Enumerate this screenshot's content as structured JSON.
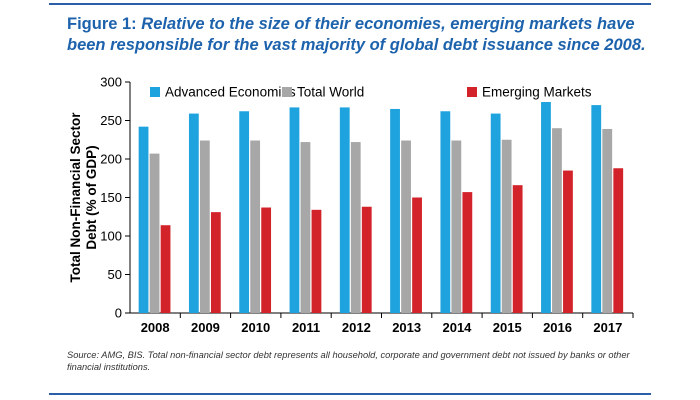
{
  "figure": {
    "label": "Figure 1:",
    "title": "Relative to the size of their economies, emerging markets have been responsible for the vast majority of global debt issuance since 2008."
  },
  "source_note": "Source: AMG, BIS. Total non-financial sector debt represents all household, corporate and government debt not issued by banks or other financial institutions.",
  "colors": {
    "border": "#2a5fa7",
    "title": "#1d62ac"
  },
  "chart_data": {
    "type": "bar",
    "title": "",
    "xlabel": "",
    "ylabel": "Total Non-Financial Sector Debt (% of GDP)",
    "ylim": [
      0,
      300
    ],
    "yticks": [
      0,
      50,
      100,
      150,
      200,
      250,
      300
    ],
    "grid": false,
    "legend_position": "top",
    "categories": [
      "2008",
      "2009",
      "2010",
      "2011",
      "2012",
      "2013",
      "2014",
      "2015",
      "2016",
      "2017"
    ],
    "series": [
      {
        "name": "Advanced Economies",
        "color": "#1ea3df",
        "values": [
          242,
          259,
          262,
          267,
          267,
          265,
          262,
          259,
          274,
          270
        ]
      },
      {
        "name": "Total World",
        "color": "#a7a7a7",
        "values": [
          207,
          224,
          224,
          222,
          222,
          224,
          224,
          225,
          240,
          239
        ]
      },
      {
        "name": "Emerging Markets",
        "color": "#d2232a",
        "values": [
          114,
          131,
          137,
          134,
          138,
          150,
          157,
          166,
          185,
          188
        ]
      }
    ]
  }
}
